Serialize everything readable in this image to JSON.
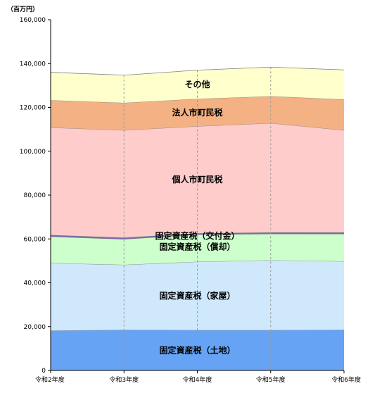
{
  "chart_data": {
    "type": "area",
    "unit_label": "（百万円）",
    "categories": [
      "令和2年度",
      "令和3年度",
      "令和4年度",
      "令和5年度",
      "令和6年度"
    ],
    "ylim": [
      0,
      160000
    ],
    "yticks": [
      "0",
      "20,000",
      "40,000",
      "60,000",
      "80,000",
      "100,000",
      "120,000",
      "140,000",
      "160,000"
    ],
    "grid": false,
    "stacked": true,
    "series": [
      {
        "name": "固定資産税（土地）",
        "color": "#66a3f5",
        "values": [
          18200,
          18500,
          18400,
          18400,
          18500
        ]
      },
      {
        "name": "固定資産税（家屋）",
        "color": "#cfe8fb",
        "values": [
          30800,
          29700,
          31200,
          31900,
          31300
        ]
      },
      {
        "name": "固定資産税（償却）",
        "color": "#ccffcc",
        "values": [
          12100,
          11700,
          12400,
          12000,
          12500
        ]
      },
      {
        "name": "固定資産税（交付金）",
        "color": "#7b6ba8",
        "values": [
          700,
          700,
          600,
          700,
          700
        ]
      },
      {
        "name": "個人市町民税",
        "color": "#ffcccc",
        "values": [
          49000,
          49000,
          48800,
          49800,
          46600
        ]
      },
      {
        "name": "法人市町民税",
        "color": "#f4b183",
        "values": [
          12500,
          12500,
          12500,
          12300,
          14000
        ]
      },
      {
        "name": "その他",
        "color": "#ffffcc",
        "values": [
          12700,
          12600,
          13100,
          13300,
          13500
        ]
      }
    ]
  }
}
